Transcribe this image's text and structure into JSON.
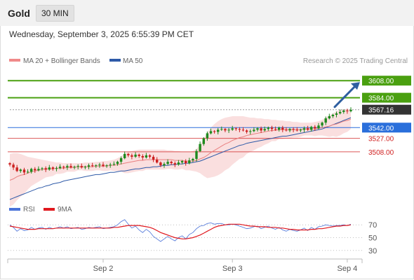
{
  "header": {
    "title": "Gold",
    "timeframe": "30 MIN"
  },
  "subheader": {
    "datetime": "Wednesday, September 3, 2025 6:55:39 PM CET"
  },
  "legend": {
    "items": [
      {
        "label": "MA 20 + Bollinger Bands",
        "color": "#f08a8a"
      },
      {
        "label": "MA 50",
        "color": "#2e5aa8"
      }
    ],
    "copyright": "Research © 2025 Trading Central"
  },
  "rsi_legend": {
    "items": [
      {
        "label": "RSI",
        "color": "#4a72d8"
      },
      {
        "label": "9MA",
        "color": "#e0191f"
      }
    ]
  },
  "colors": {
    "up": "#1e8a1e",
    "down": "#cc2020",
    "resistance": "#4aa010",
    "support": "#2a6fdb",
    "pivot_red": "#d02020"
  },
  "chart_data": [
    {
      "type": "candlestick",
      "x_ticks": [
        "Sep 2",
        "Sep 3",
        "Sep 4"
      ],
      "ylim": [
        3440,
        3620
      ],
      "last_price": 3567.16,
      "levels": [
        {
          "label": "3608.00",
          "value": 3608.0,
          "color": "#4aa010",
          "kind": "resistance"
        },
        {
          "label": "3584.00",
          "value": 3584.0,
          "color": "#4aa010",
          "kind": "resistance"
        },
        {
          "label": "3567.16",
          "value": 3567.16,
          "color": "#333333",
          "kind": "last"
        },
        {
          "label": "3542.00",
          "value": 3542.0,
          "color": "#2a6fdb",
          "kind": "support"
        },
        {
          "label": "3527.00",
          "value": 3527.0,
          "color": "#d02020",
          "kind": "support"
        },
        {
          "label": "3508.00",
          "value": 3508.0,
          "color": "#d02020",
          "kind": "support"
        }
      ],
      "close": [
        3490,
        3486,
        3481,
        3483,
        3479,
        3480,
        3484,
        3482,
        3484,
        3485,
        3483,
        3486,
        3484,
        3485,
        3487,
        3486,
        3488,
        3486,
        3487,
        3488,
        3486,
        3487,
        3489,
        3488,
        3489,
        3490,
        3488,
        3489,
        3490,
        3491,
        3494,
        3499,
        3505,
        3503,
        3501,
        3504,
        3502,
        3500,
        3503,
        3501,
        3497,
        3493,
        3489,
        3491,
        3494,
        3492,
        3490,
        3493,
        3495,
        3492,
        3496,
        3498,
        3509,
        3519,
        3527,
        3534,
        3537,
        3536,
        3539,
        3540,
        3538,
        3539,
        3541,
        3540,
        3539,
        3538,
        3536,
        3537,
        3539,
        3541,
        3538,
        3540,
        3542,
        3540,
        3539,
        3542,
        3539,
        3538,
        3540,
        3539,
        3538,
        3539,
        3541,
        3539,
        3543,
        3541,
        3545,
        3549,
        3555,
        3558,
        3560,
        3562,
        3564,
        3566,
        3565,
        3567
      ],
      "ma20": [
        3468,
        3470,
        3473,
        3475,
        3476,
        3478,
        3480,
        3481,
        3482,
        3483,
        3484,
        3484,
        3484,
        3485,
        3485,
        3485,
        3486,
        3486,
        3486,
        3487,
        3487,
        3487,
        3487,
        3487,
        3488,
        3488,
        3488,
        3488,
        3489,
        3489,
        3490,
        3491,
        3492,
        3493,
        3494,
        3495,
        3496,
        3496,
        3497,
        3497,
        3497,
        3497,
        3497,
        3497,
        3497,
        3497,
        3496,
        3496,
        3496,
        3495,
        3495,
        3495,
        3496,
        3498,
        3500,
        3503,
        3507,
        3510,
        3513,
        3516,
        3519,
        3521,
        3524,
        3526,
        3528,
        3529,
        3531,
        3532,
        3533,
        3534,
        3535,
        3536,
        3537,
        3538,
        3538,
        3539,
        3539,
        3539,
        3539,
        3539,
        3539,
        3539,
        3540,
        3540,
        3540,
        3540,
        3541,
        3542,
        3543,
        3544,
        3546,
        3547,
        3549,
        3551,
        3552,
        3554
      ],
      "ma50": [
        3441,
        3443,
        3445,
        3447,
        3449,
        3451,
        3453,
        3455,
        3457,
        3458,
        3460,
        3461,
        3463,
        3464,
        3465,
        3467,
        3468,
        3469,
        3470,
        3471,
        3472,
        3473,
        3474,
        3475,
        3476,
        3476,
        3477,
        3478,
        3479,
        3479,
        3480,
        3481,
        3481,
        3482,
        3483,
        3484,
        3484,
        3485,
        3486,
        3486,
        3487,
        3487,
        3488,
        3489,
        3489,
        3490,
        3490,
        3491,
        3491,
        3492,
        3492,
        3493,
        3494,
        3495,
        3497,
        3499,
        3501,
        3503,
        3505,
        3507,
        3509,
        3511,
        3513,
        3515,
        3517,
        3518,
        3520,
        3521,
        3522,
        3523,
        3524,
        3525,
        3526,
        3527,
        3528,
        3529,
        3530,
        3530,
        3531,
        3532,
        3533,
        3534,
        3535,
        3536,
        3537,
        3538,
        3539,
        3540,
        3542,
        3544,
        3546,
        3548,
        3550,
        3552,
        3554,
        3556
      ],
      "bb_upper": [
        3505,
        3506,
        3506,
        3505,
        3503,
        3501,
        3500,
        3499,
        3498,
        3497,
        3496,
        3495,
        3494,
        3493,
        3493,
        3492,
        3492,
        3492,
        3492,
        3492,
        3492,
        3493,
        3493,
        3493,
        3494,
        3494,
        3495,
        3495,
        3496,
        3497,
        3499,
        3502,
        3506,
        3508,
        3509,
        3510,
        3511,
        3511,
        3511,
        3511,
        3511,
        3511,
        3511,
        3511,
        3510,
        3510,
        3509,
        3509,
        3508,
        3508,
        3508,
        3509,
        3512,
        3518,
        3526,
        3535,
        3542,
        3547,
        3551,
        3554,
        3556,
        3557,
        3558,
        3558,
        3558,
        3558,
        3557,
        3556,
        3556,
        3555,
        3555,
        3554,
        3554,
        3553,
        3553,
        3552,
        3552,
        3551,
        3551,
        3550,
        3550,
        3549,
        3549,
        3549,
        3549,
        3550,
        3551,
        3553,
        3556,
        3559,
        3562,
        3565,
        3567,
        3568,
        3568,
        3568
      ],
      "bb_lower": [
        3431,
        3434,
        3440,
        3445,
        3449,
        3455,
        3460,
        3463,
        3466,
        3469,
        3472,
        3473,
        3474,
        3477,
        3477,
        3478,
        3480,
        3480,
        3480,
        3482,
        3482,
        3481,
        3481,
        3481,
        3482,
        3482,
        3481,
        3481,
        3482,
        3481,
        3481,
        3480,
        3478,
        3478,
        3479,
        3480,
        3481,
        3481,
        3483,
        3483,
        3483,
        3483,
        3483,
        3483,
        3484,
        3484,
        3483,
        3483,
        3484,
        3482,
        3482,
        3481,
        3480,
        3478,
        3474,
        3471,
        3472,
        3473,
        3475,
        3478,
        3482,
        3485,
        3490,
        3494,
        3498,
        3500,
        3505,
        3508,
        3510,
        3513,
        3515,
        3518,
        3520,
        3523,
        3523,
        3526,
        3526,
        3527,
        3527,
        3528,
        3528,
        3529,
        3531,
        3531,
        3531,
        3530,
        3531,
        3531,
        3530,
        3529,
        3530,
        3529,
        3531,
        3534,
        3536,
        3540
      ]
    },
    {
      "type": "line",
      "name": "RSI",
      "ylim": [
        20,
        80
      ],
      "y_ticks": [
        70,
        50,
        30
      ],
      "series": [
        {
          "name": "RSI",
          "color": "#4a72d8",
          "values": [
            70,
            66,
            60,
            64,
            61,
            62,
            66,
            63,
            65,
            66,
            63,
            66,
            64,
            65,
            67,
            65,
            67,
            64,
            65,
            66,
            63,
            64,
            66,
            65,
            66,
            67,
            64,
            65,
            66,
            67,
            70,
            75,
            78,
            71,
            65,
            68,
            62,
            58,
            63,
            59,
            52,
            48,
            44,
            48,
            52,
            48,
            45,
            50,
            53,
            48,
            55,
            58,
            64,
            68,
            69,
            72,
            73,
            71,
            72,
            72,
            70,
            70,
            71,
            70,
            68,
            66,
            64,
            65,
            67,
            68,
            64,
            66,
            68,
            65,
            63,
            66,
            62,
            60,
            63,
            61,
            60,
            62,
            65,
            61,
            66,
            63,
            67,
            68,
            70,
            69,
            68,
            69,
            69,
            70,
            69,
            71
          ]
        },
        {
          "name": "9MA",
          "color": "#e0191f",
          "values": [
            68,
            67,
            66,
            65,
            64,
            63,
            63,
            63,
            64,
            64,
            64,
            64,
            64,
            65,
            65,
            65,
            65,
            65,
            65,
            65,
            65,
            65,
            65,
            65,
            65,
            65,
            65,
            65,
            65,
            66,
            66,
            67,
            68,
            69,
            69,
            69,
            69,
            68,
            67,
            66,
            64,
            61,
            58,
            56,
            54,
            52,
            50,
            49,
            48,
            48,
            49,
            50,
            52,
            54,
            57,
            60,
            63,
            66,
            68,
            69,
            70,
            71,
            71,
            71,
            71,
            70,
            69,
            68,
            68,
            67,
            67,
            67,
            66,
            66,
            66,
            65,
            65,
            64,
            63,
            63,
            62,
            62,
            62,
            62,
            63,
            63,
            64,
            64,
            65,
            66,
            67,
            68,
            68,
            69,
            69,
            70
          ]
        }
      ]
    }
  ]
}
